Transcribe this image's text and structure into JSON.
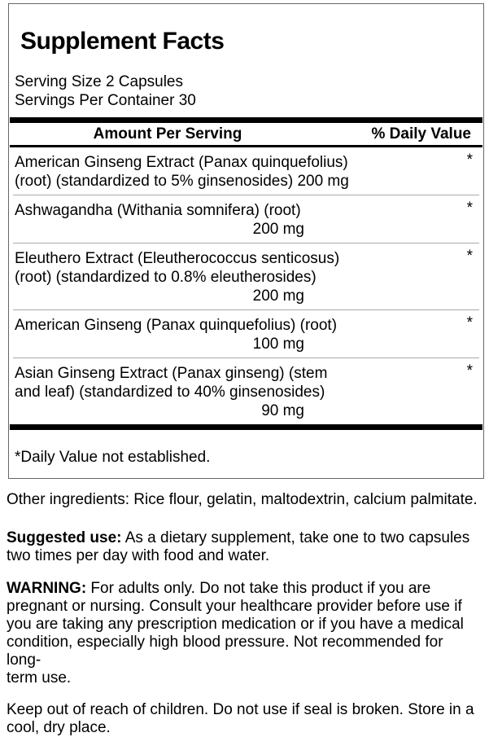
{
  "panel": {
    "title": "Supplement Facts",
    "serving_size": "Serving Size 2 Capsules",
    "servings_per_container": "Servings Per Container 30",
    "header": {
      "amount_label": "Amount Per Serving",
      "daily_value_label": "% Daily Value"
    },
    "rows": [
      {
        "text": "American Ginseng Extract (Panax quinquefolius)\n(root) (standardized to 5% ginsenosides) 200 mg",
        "amount": "",
        "daily_value": "*"
      },
      {
        "text": "Ashwagandha (Withania somnifera) (root)",
        "amount": "200 mg",
        "daily_value": "*"
      },
      {
        "text": "Eleuthero Extract (Eleutherococcus senticosus)\n(root) (standardized to 0.8% eleutherosides)",
        "amount": "200 mg",
        "daily_value": "*"
      },
      {
        "text": "American Ginseng (Panax quinquefolius) (root)",
        "amount": "100 mg",
        "daily_value": "*"
      },
      {
        "text": "Asian Ginseng Extract (Panax ginseng) (stem\nand leaf) (standardized to 40% ginsenosides)",
        "amount": "90 mg",
        "daily_value": "*"
      }
    ],
    "footnote": "*Daily Value not established."
  },
  "paragraphs": [
    {
      "lead": "",
      "body": "Other ingredients: Rice flour, gelatin, maltodextrin, calcium palmitate."
    },
    {
      "lead": "Suggested use:",
      "body": " As a dietary supplement, take one to two capsules\ntwo times per day with food and water."
    },
    {
      "lead": "WARNING:",
      "body": " For adults only. Do not take this product if you are\npregnant or nursing. Consult your healthcare provider before use if\nyou are taking any prescription medication or if you have a medical\ncondition, especially high blood pressure. Not recommended for long-\nterm use."
    },
    {
      "lead": "",
      "body": "Keep out of reach of children. Do not use if seal is broken. Store in a\ncool, dry place."
    }
  ],
  "colors": {
    "background": "#ffffff",
    "text": "#000000",
    "panel_border": "#666666",
    "row_separator": "#aaaaaa",
    "bar": "#000000"
  }
}
